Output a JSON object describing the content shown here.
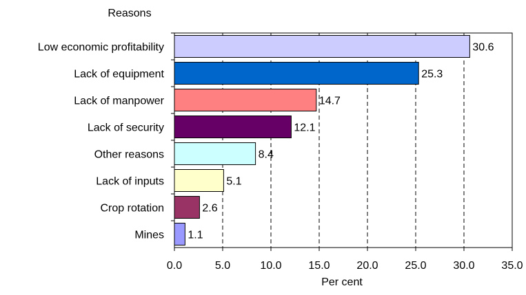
{
  "chart_data": {
    "type": "bar",
    "orientation": "horizontal",
    "categories": [
      "Low economic profitability",
      "Lack of equipment",
      "Lack of manpower",
      "Lack of security",
      "Other reasons",
      "Lack of inputs",
      "Crop rotation",
      "Mines"
    ],
    "values": [
      30.6,
      25.3,
      14.7,
      12.1,
      8.4,
      5.1,
      2.6,
      1.1
    ],
    "data_labels": [
      "30.6",
      "25.3",
      "14.7",
      "12.1",
      "8.4",
      "5.1",
      "2.6",
      "1.1"
    ],
    "bar_colors": [
      "#ccccff",
      "#0066cc",
      "#ff8080",
      "#660066",
      "#ccffff",
      "#ffffcc",
      "#993366",
      "#9999ff"
    ],
    "title": "",
    "xlabel": "Per cent",
    "ylabel": "Reasons",
    "xlim": [
      0,
      35
    ],
    "x_ticks": [
      0,
      5,
      10,
      15,
      20,
      25,
      30,
      35
    ],
    "x_tick_labels": [
      "0.0",
      "5.0",
      "10.0",
      "15.0",
      "20.0",
      "25.0",
      "30.0",
      "35.0"
    ],
    "grid": "vertical dashed",
    "legend": "none"
  }
}
